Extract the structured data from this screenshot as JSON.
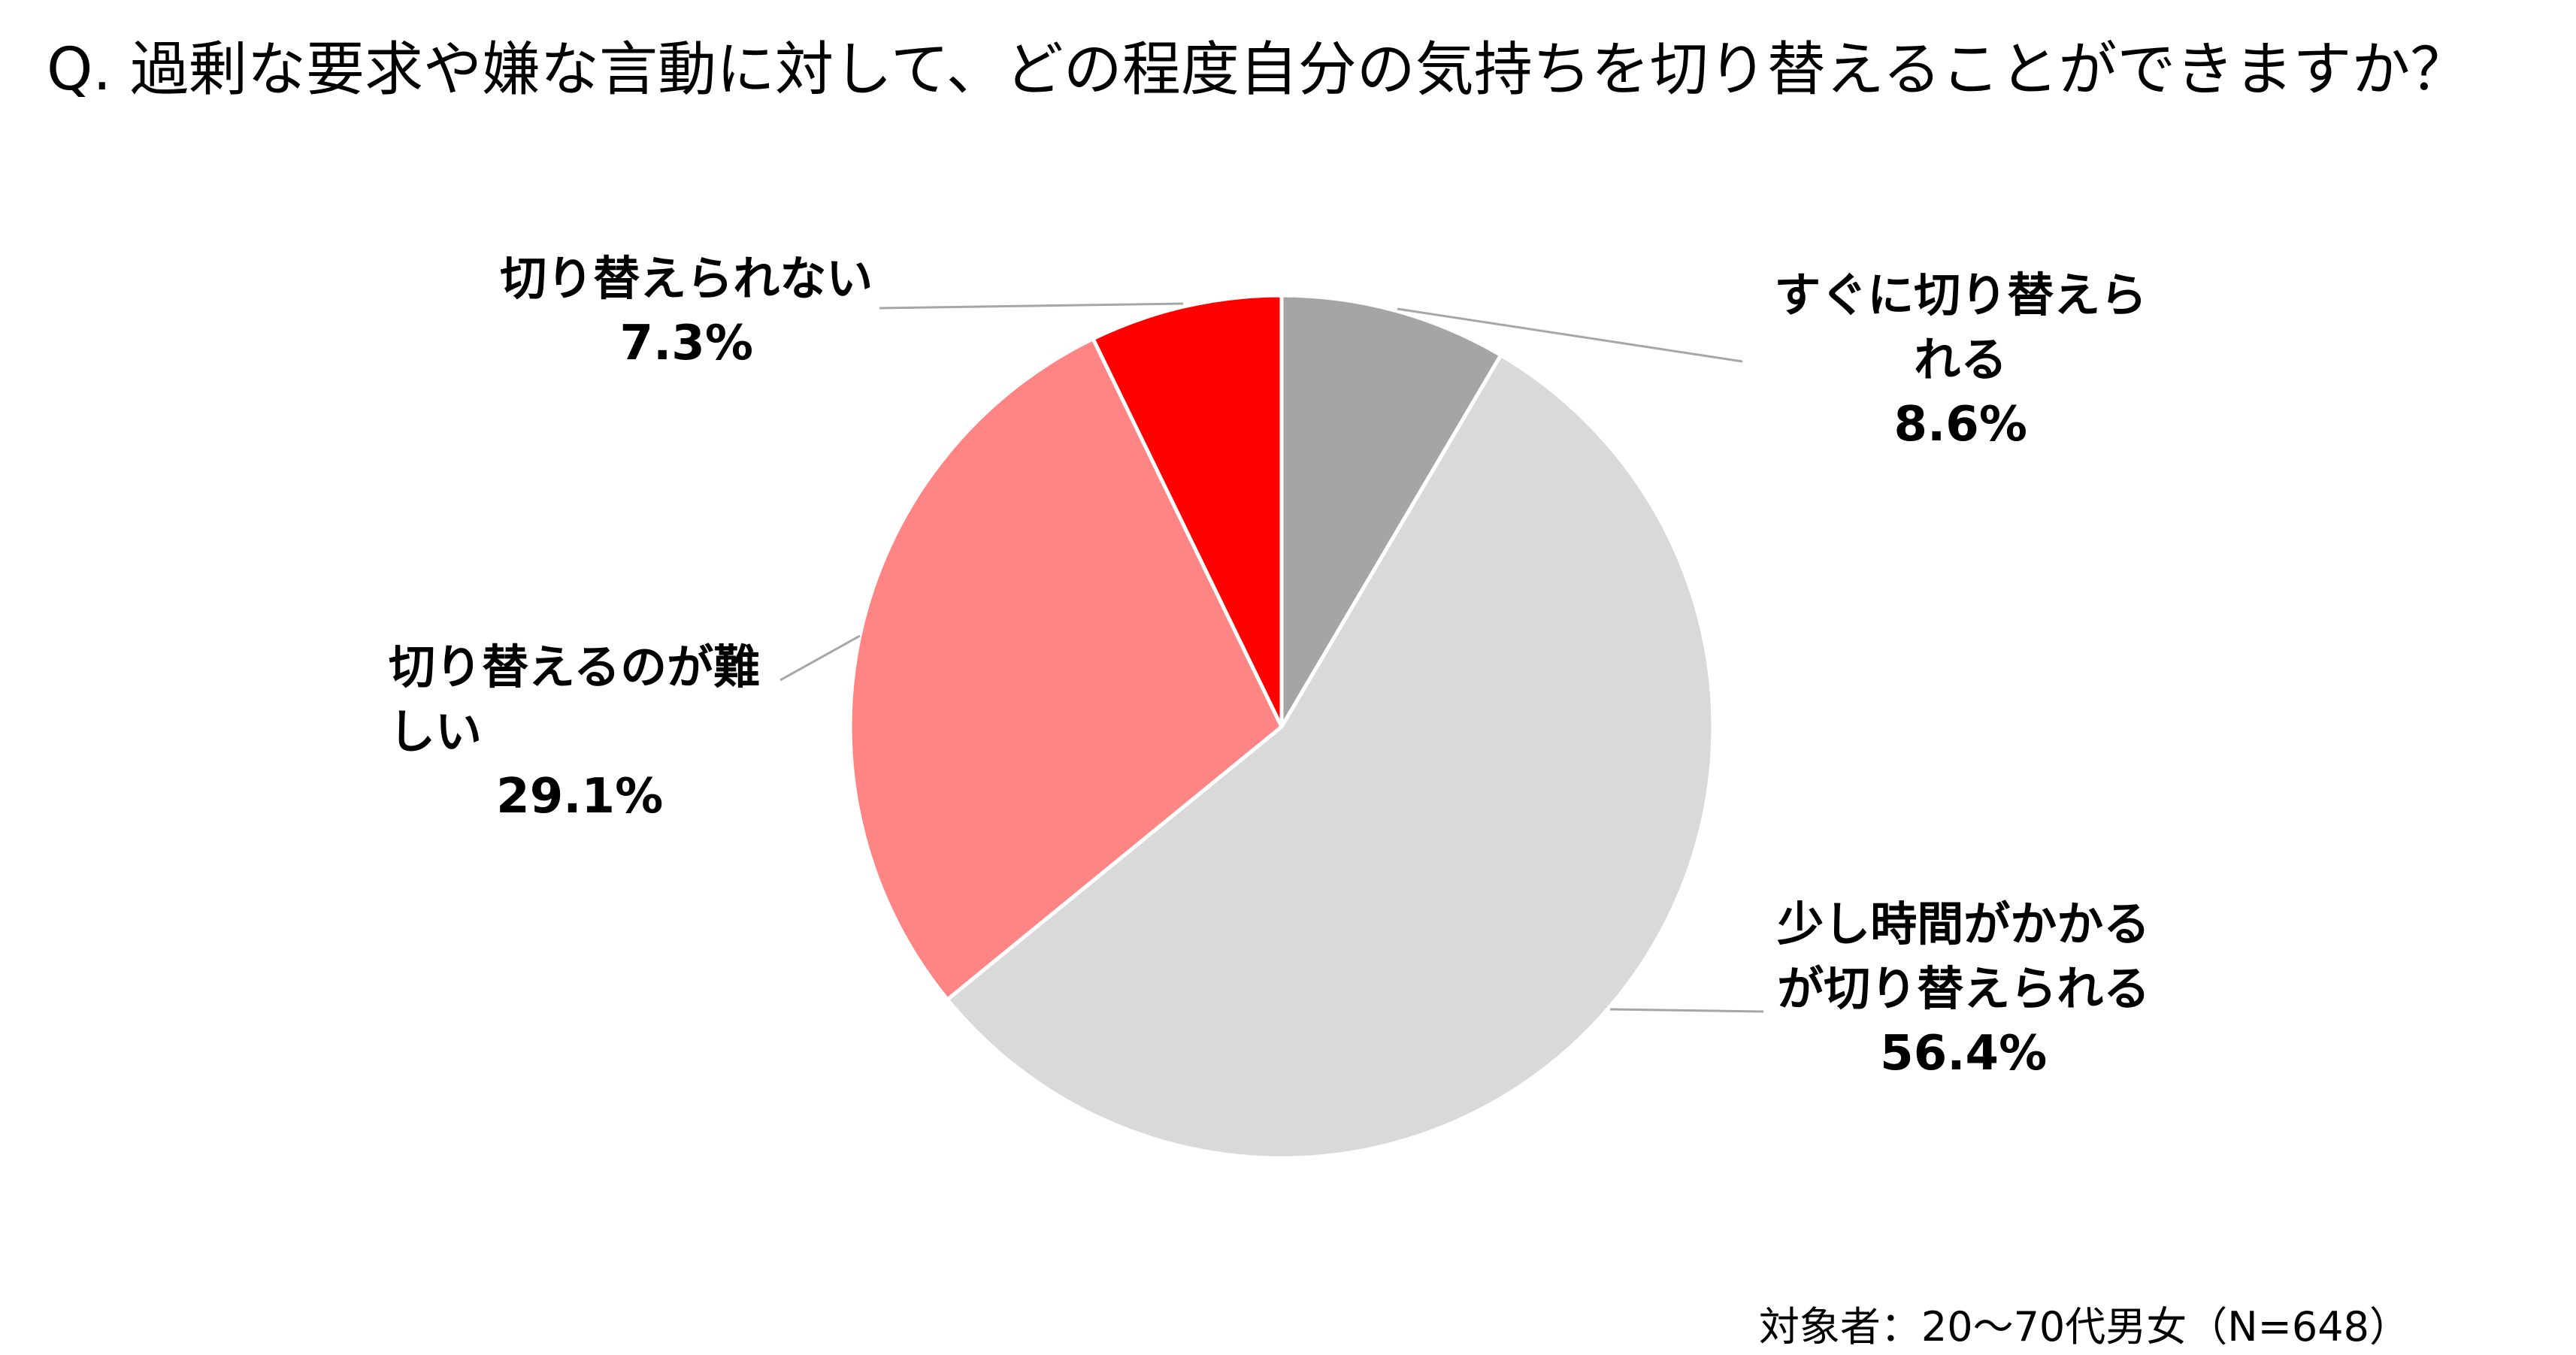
{
  "chart_data": {
    "type": "pie",
    "title": "Q. 過剰な要求や嫌な言動に対して、どの程度自分の気持ちを切り替えることができますか？",
    "categories": [
      "すぐに切り替えられる",
      "少し時間がかかるが切り替えられる",
      "切り替えるのが難しい",
      "切り替えられない"
    ],
    "values": [
      8.6,
      56.4,
      29.1,
      7.3
    ],
    "unit": "%",
    "colors": [
      "#A5A5A5",
      "#D9D9D9",
      "#FF8585",
      "#FF0000"
    ],
    "legend": "none"
  },
  "footnote": "対象者：20～70代男女（N=648）"
}
